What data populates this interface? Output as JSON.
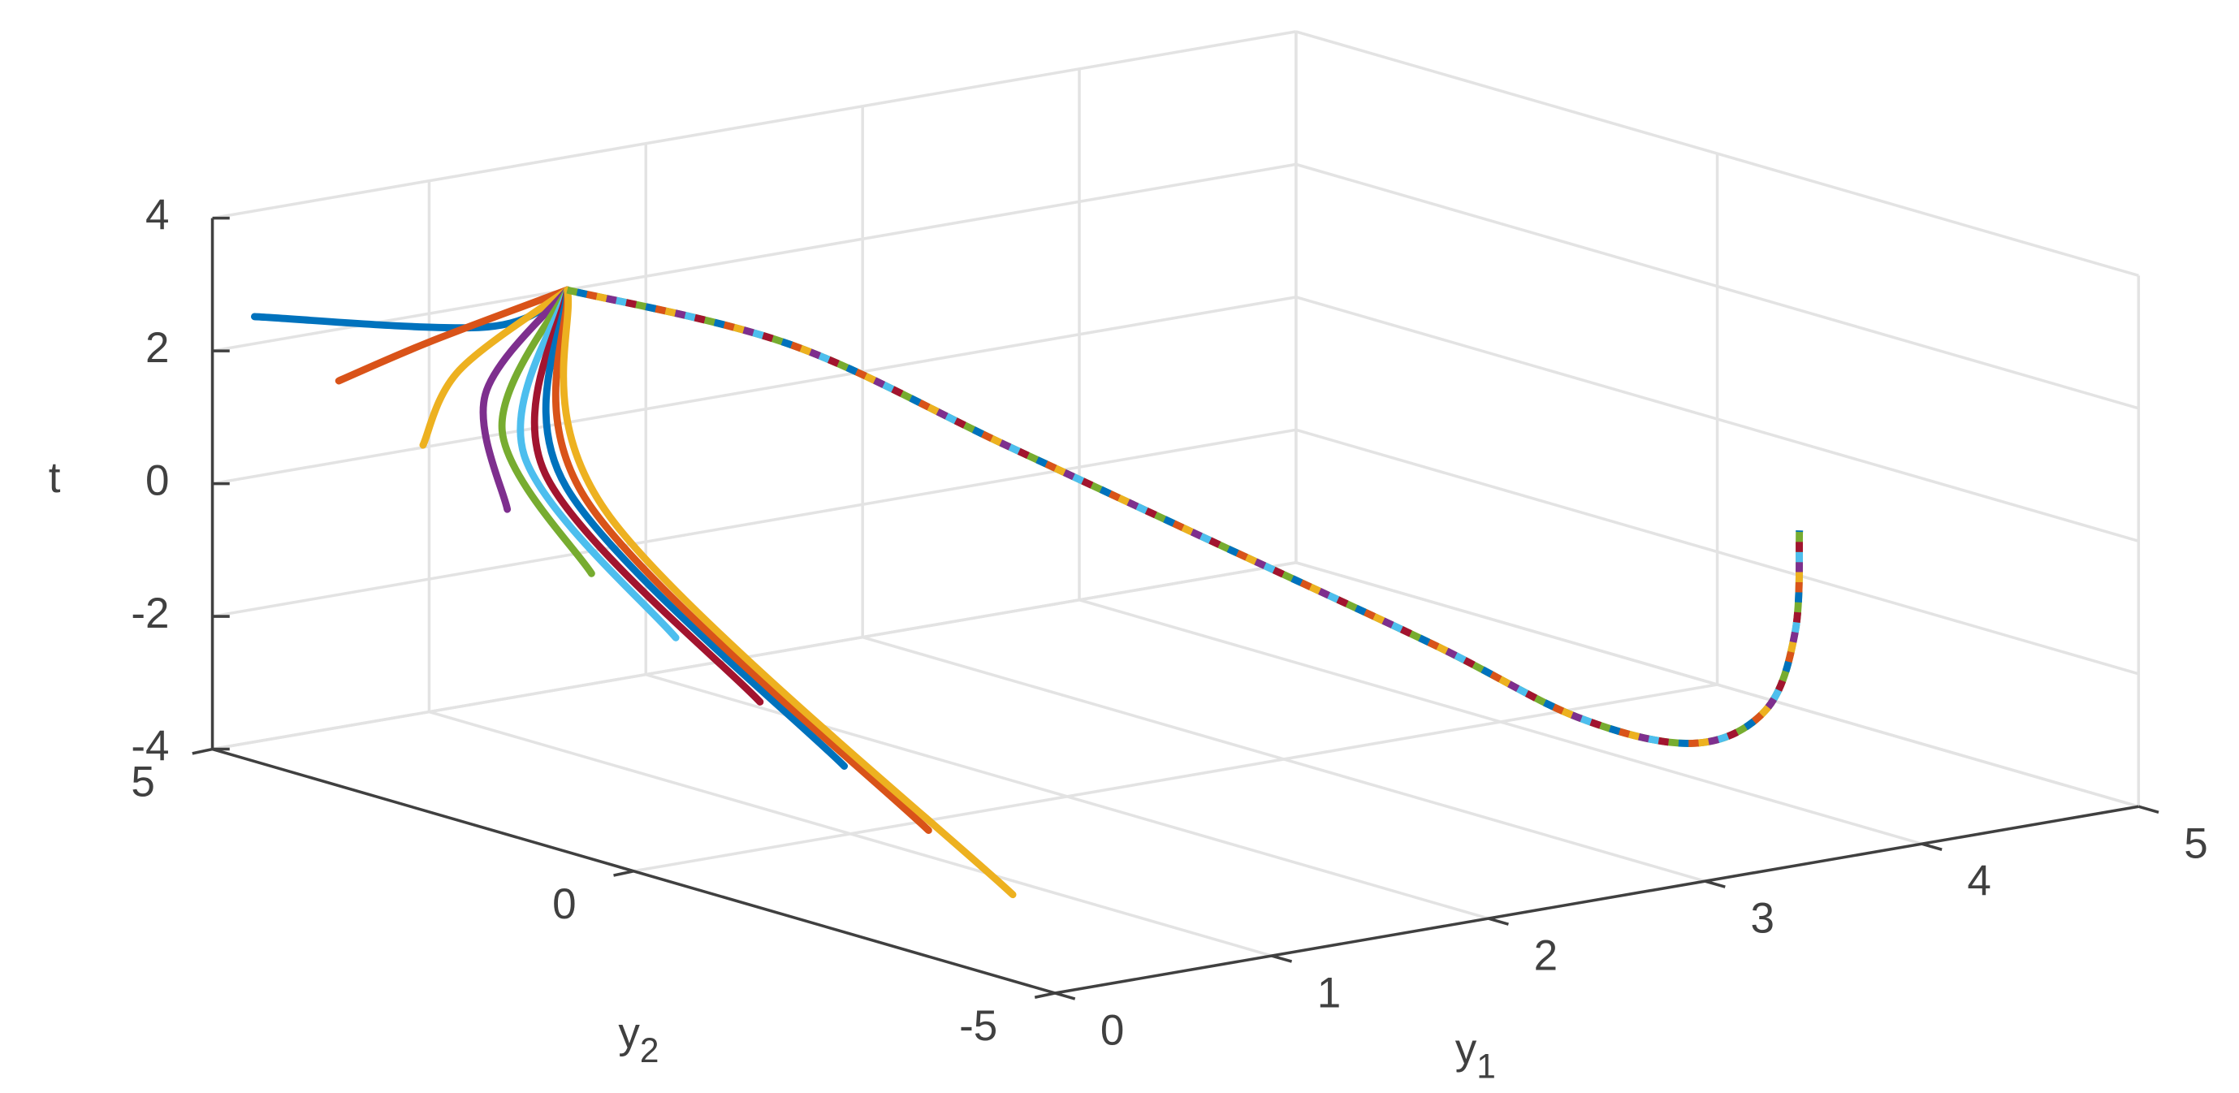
{
  "chart_data": {
    "type": "line3d",
    "xlabel": {
      "base": "y",
      "sub": "1"
    },
    "ylabel": {
      "base": "y",
      "sub": "2"
    },
    "zlabel": "t",
    "xlim": [
      0,
      5
    ],
    "xticks": [
      0,
      1,
      2,
      3,
      4,
      5
    ],
    "ylim": [
      -5,
      5
    ],
    "yticks": [
      -5,
      0,
      5
    ],
    "zlim": [
      -4,
      4
    ],
    "zticks": [
      -4,
      -2,
      0,
      2,
      4
    ],
    "grid": true,
    "series": [
      {
        "color": "#0072bd",
        "y1": [
          0,
          0.4,
          0.86
        ],
        "y2": [
          4.5,
          2.76,
          3
        ],
        "t": [
          2.7,
          2.96,
          3.17
        ]
      },
      {
        "color": "#d95319",
        "y1": [
          0,
          0.4,
          0.86
        ],
        "y2": [
          3.5,
          3.44,
          3
        ],
        "t": [
          2.1,
          2.49,
          3.17
        ]
      },
      {
        "color": "#edb120",
        "y1": [
          0,
          0.4,
          0.86
        ],
        "y2": [
          2.5,
          3.1,
          3
        ],
        "t": [
          1.5,
          2.18,
          3.17
        ]
      },
      {
        "color": "#7e2f8e",
        "y1": [
          0,
          0.4,
          0.86
        ],
        "y2": [
          1.5,
          2.79,
          3
        ],
        "t": [
          0.9,
          1.93,
          3.17
        ]
      },
      {
        "color": "#77ac30",
        "y1": [
          0,
          0.4,
          0.86
        ],
        "y2": [
          0.5,
          2.59,
          3
        ],
        "t": [
          0.3,
          1.46,
          3.17
        ]
      },
      {
        "color": "#4dbeee",
        "y1": [
          0,
          0.4,
          0.86
        ],
        "y2": [
          -0.5,
          2.33,
          3
        ],
        "t": [
          -0.3,
          1.19,
          3.17
        ]
      },
      {
        "color": "#a2142f",
        "y1": [
          0,
          0.4,
          0.86
        ],
        "y2": [
          -1.5,
          2.08,
          3
        ],
        "t": [
          -0.9,
          1.0,
          3.17
        ]
      },
      {
        "color": "#0072bd",
        "y1": [
          0,
          0.4,
          0.86
        ],
        "y2": [
          -2.5,
          1.83,
          3
        ],
        "t": [
          -1.5,
          0.89,
          3.17
        ]
      },
      {
        "color": "#d95319",
        "y1": [
          0,
          0.4,
          0.86
        ],
        "y2": [
          -3.5,
          1.57,
          3
        ],
        "t": [
          -2.1,
          0.75,
          3.17
        ]
      },
      {
        "color": "#edb120",
        "y1": [
          0,
          0.4,
          0.86
        ],
        "y2": [
          -4.5,
          1.31,
          3
        ],
        "t": [
          -2.7,
          0.63,
          3.17
        ]
      },
      {
        "colors": [
          "#77ac30",
          "#0072bd",
          "#d95319",
          "#edb120",
          "#7e2f8e",
          "#4dbeee",
          "#a2142f"
        ],
        "y1": [
          0.86,
          1.69,
          2.49,
          3.29,
          4.09,
          3.97,
          4.11,
          4.25,
          4.31,
          4.31
        ],
        "y2": [
          3,
          2.5,
          2,
          1.5,
          1,
          -1,
          -2,
          -2.5,
          -2.7,
          -2.75
        ],
        "t": [
          3.17,
          2.07,
          0.29,
          -1.49,
          -3.27,
          -3.55,
          -3.65,
          -3.05,
          -1.82,
          -0.28
        ]
      }
    ]
  }
}
